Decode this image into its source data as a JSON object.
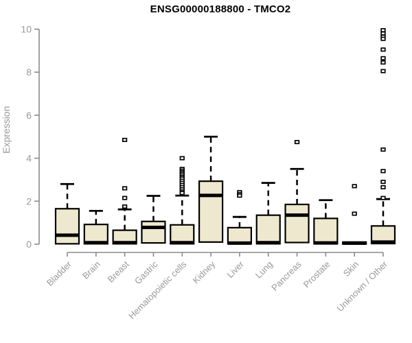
{
  "title": "ENSG00000188800 - TMCO2",
  "chart_data": {
    "type": "boxplot",
    "title": "ENSG00000188800 - TMCO2",
    "xlabel": "",
    "ylabel": "Expression",
    "ylim": [
      0,
      10
    ],
    "yticks": [
      0,
      2,
      4,
      6,
      8,
      10
    ],
    "grid": false,
    "legend": "none",
    "categories": [
      "Bladder",
      "Brain",
      "Breast",
      "Gastric",
      "Hematopoietic cells",
      "Kidney",
      "Liver",
      "Lung",
      "Pancreas",
      "Prostate",
      "Skin",
      "Unknown / Other"
    ],
    "boxes": [
      {
        "category": "Bladder",
        "median": 0.42,
        "q1": 0.02,
        "q3": 1.65,
        "whisker_low": 0.02,
        "whisker_high": 2.8,
        "outliers": []
      },
      {
        "category": "Brain",
        "median": 0.07,
        "q1": 0.02,
        "q3": 0.92,
        "whisker_low": 0.02,
        "whisker_high": 1.55,
        "outliers": []
      },
      {
        "category": "Breast",
        "median": 0.07,
        "q1": 0.02,
        "q3": 0.65,
        "whisker_low": 0.02,
        "whisker_high": 1.62,
        "outliers": [
          4.85,
          2.6,
          2.15,
          1.75
        ]
      },
      {
        "category": "Gastric",
        "median": 0.78,
        "q1": 0.06,
        "q3": 1.06,
        "whisker_low": 0.06,
        "whisker_high": 2.25,
        "outliers": []
      },
      {
        "category": "Hematopoietic cells",
        "median": 0.07,
        "q1": 0.02,
        "q3": 0.9,
        "whisker_low": 0.02,
        "whisker_high": 2.26,
        "outliers": [
          4.0,
          3.5,
          3.42,
          3.35,
          3.28,
          3.2,
          3.12,
          3.05,
          2.95,
          2.85,
          2.75,
          2.65,
          2.55,
          2.45,
          2.38
        ]
      },
      {
        "category": "Kidney",
        "median": 2.27,
        "q1": 0.1,
        "q3": 2.93,
        "whisker_low": 0.1,
        "whisker_high": 5.0,
        "outliers": []
      },
      {
        "category": "Liver",
        "median": 0.05,
        "q1": 0.02,
        "q3": 0.77,
        "whisker_low": 0.02,
        "whisker_high": 1.27,
        "outliers": [
          2.42,
          2.33,
          2.26
        ]
      },
      {
        "category": "Lung",
        "median": 0.07,
        "q1": 0.02,
        "q3": 1.35,
        "whisker_low": 0.02,
        "whisker_high": 2.85,
        "outliers": []
      },
      {
        "category": "Pancreas",
        "median": 1.35,
        "q1": 0.08,
        "q3": 1.85,
        "whisker_low": 0.08,
        "whisker_high": 3.5,
        "outliers": [
          4.75
        ]
      },
      {
        "category": "Prostate",
        "median": 0.06,
        "q1": 0.02,
        "q3": 1.2,
        "whisker_low": 0.02,
        "whisker_high": 2.05,
        "outliers": []
      },
      {
        "category": "Skin",
        "median": 0.05,
        "q1": 0.01,
        "q3": 0.1,
        "whisker_low": 0.01,
        "whisker_high": 0.1,
        "outliers": [
          2.7,
          1.42
        ]
      },
      {
        "category": "Unknown / Other",
        "median": 0.1,
        "q1": 0.03,
        "q3": 0.85,
        "whisker_low": 0.03,
        "whisker_high": 2.1,
        "outliers": [
          9.95,
          9.8,
          9.65,
          9.55,
          9.05,
          8.65,
          8.45,
          8.05,
          4.4,
          3.4,
          2.9,
          2.65,
          2.15
        ]
      }
    ],
    "colors": {
      "box_fill": "#EDE8CE",
      "box_stroke": "#000000",
      "median": "#000000",
      "whisker": "#000000",
      "outlier_stroke": "#000000",
      "outlier_fill": "#FFFFFF",
      "axis": "#8A8A8A",
      "tick_label": "#999999",
      "axis_label": "#999999",
      "title_text": "#000000",
      "background": "#FFFFFF"
    }
  }
}
